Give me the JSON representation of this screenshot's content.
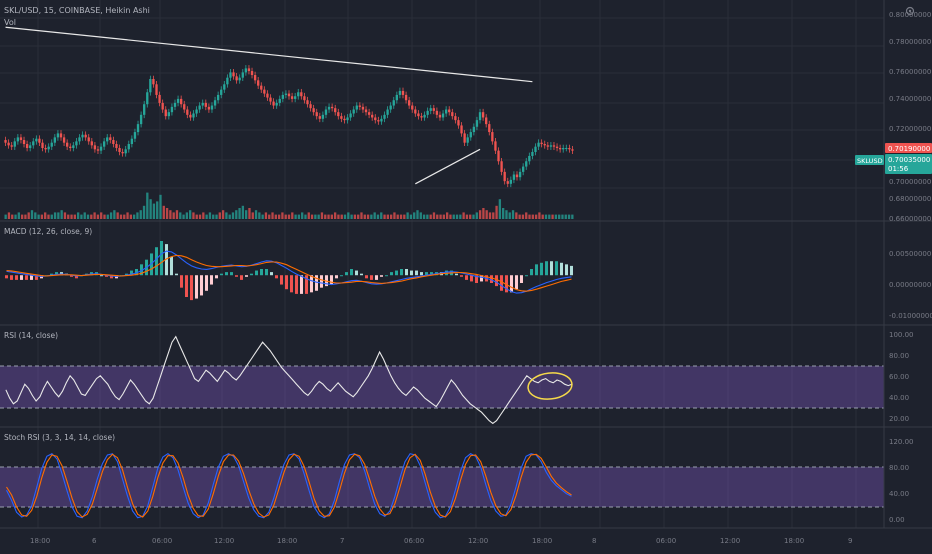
{
  "header": {
    "symbol_line": "SKL/USD, 15, COINBASE, Heikin Ashi",
    "vol_label": "Vol"
  },
  "price_axis": {
    "ticks": [
      "0.78000000",
      "0.76000000",
      "0.74000000",
      "0.72000000",
      "0.70000000",
      "0.68000000",
      "0.66000000"
    ],
    "top_tick": "0.80000000",
    "marker_red": "0.70190000",
    "marker_green_value": "0.70035000",
    "marker_green_time": "01:56",
    "symbol_tag": "SKLUSD"
  },
  "macd": {
    "label": "MACD (12, 26, close, 9)",
    "ticks": [
      "0.00500000",
      "0.00000000",
      "-0.01000000"
    ]
  },
  "rsi": {
    "label": "RSI (14, close)",
    "ticks": [
      "100.00",
      "80.00",
      "60.00",
      "40.00",
      "20.00"
    ]
  },
  "stoch": {
    "label": "Stoch RSI (3, 3, 14, 14, close)",
    "ticks": [
      "120.00",
      "80.00",
      "40.00",
      "0.00"
    ]
  },
  "time_axis": [
    "18:00",
    "6",
    "06:00",
    "12:00",
    "18:00",
    "7",
    "06:00",
    "12:00",
    "18:00",
    "8",
    "06:00",
    "12:00",
    "18:00",
    "9"
  ],
  "colors": {
    "up": "#26a69a",
    "down": "#ef5350",
    "background": "#1e222d",
    "macd_line": "#2962ff",
    "signal_line": "#ff6d00",
    "band": "#7e57c2",
    "annotation": "#f5d94a"
  },
  "chart_data": [
    {
      "type": "candlestick",
      "title": "SKL/USD, 15, COINBASE, Heikin Ashi",
      "ylim": [
        0.655,
        0.805
      ],
      "candles_close": [
        0.708,
        0.706,
        0.705,
        0.709,
        0.712,
        0.71,
        0.707,
        0.704,
        0.706,
        0.709,
        0.711,
        0.708,
        0.704,
        0.703,
        0.705,
        0.708,
        0.712,
        0.715,
        0.712,
        0.708,
        0.705,
        0.704,
        0.706,
        0.709,
        0.712,
        0.714,
        0.712,
        0.709,
        0.706,
        0.703,
        0.702,
        0.705,
        0.709,
        0.712,
        0.71,
        0.707,
        0.704,
        0.701,
        0.7,
        0.703,
        0.707,
        0.711,
        0.716,
        0.722,
        0.729,
        0.737,
        0.746,
        0.756,
        0.752,
        0.744,
        0.738,
        0.733,
        0.728,
        0.731,
        0.735,
        0.738,
        0.741,
        0.737,
        0.733,
        0.729,
        0.727,
        0.73,
        0.733,
        0.736,
        0.738,
        0.735,
        0.733,
        0.736,
        0.74,
        0.744,
        0.748,
        0.752,
        0.757,
        0.761,
        0.758,
        0.755,
        0.757,
        0.761,
        0.764,
        0.762,
        0.759,
        0.755,
        0.751,
        0.748,
        0.745,
        0.742,
        0.739,
        0.736,
        0.738,
        0.741,
        0.744,
        0.745,
        0.743,
        0.741,
        0.743,
        0.746,
        0.743,
        0.74,
        0.737,
        0.734,
        0.731,
        0.728,
        0.726,
        0.729,
        0.733,
        0.735,
        0.734,
        0.731,
        0.728,
        0.726,
        0.725,
        0.727,
        0.73,
        0.733,
        0.736,
        0.735,
        0.733,
        0.731,
        0.729,
        0.727,
        0.725,
        0.724,
        0.726,
        0.729,
        0.733,
        0.736,
        0.74,
        0.744,
        0.747,
        0.744,
        0.74,
        0.736,
        0.733,
        0.73,
        0.728,
        0.727,
        0.729,
        0.732,
        0.734,
        0.732,
        0.729,
        0.727,
        0.73,
        0.733,
        0.731,
        0.728,
        0.725,
        0.721,
        0.715,
        0.708,
        0.712,
        0.716,
        0.72,
        0.725,
        0.731,
        0.727,
        0.722,
        0.716,
        0.709,
        0.702,
        0.694,
        0.686,
        0.679,
        0.677,
        0.68,
        0.684,
        0.682,
        0.686,
        0.69,
        0.694,
        0.698,
        0.701,
        0.705,
        0.708,
        0.707,
        0.706,
        0.705,
        0.706,
        0.705,
        0.704,
        0.703,
        0.704,
        0.704,
        0.703,
        0.702
      ],
      "trendlines": [
        {
          "from": [
            0,
            0.795
          ],
          "to": [
            171,
            0.754
          ]
        },
        {
          "from": [
            133,
            0.677
          ],
          "to": [
            154,
            0.703
          ]
        }
      ]
    },
    {
      "type": "bar",
      "title": "Vol",
      "volume": [
        2,
        3,
        2,
        2,
        3,
        2,
        2,
        3,
        4,
        3,
        2,
        2,
        3,
        2,
        2,
        3,
        3,
        4,
        3,
        2,
        2,
        2,
        3,
        2,
        3,
        2,
        2,
        3,
        2,
        3,
        2,
        2,
        3,
        4,
        3,
        2,
        2,
        3,
        2,
        2,
        3,
        4,
        6,
        12,
        9,
        7,
        8,
        11,
        6,
        5,
        4,
        3,
        4,
        3,
        2,
        3,
        4,
        3,
        2,
        2,
        3,
        2,
        3,
        2,
        2,
        3,
        4,
        3,
        2,
        3,
        4,
        5,
        6,
        4,
        5,
        3,
        4,
        3,
        2,
        3,
        2,
        3,
        2,
        2,
        3,
        2,
        2,
        3,
        2,
        2,
        3,
        2,
        3,
        2,
        2,
        2,
        3,
        2,
        2,
        2,
        3,
        2,
        2,
        2,
        3,
        2,
        2,
        2,
        3,
        2,
        2,
        2,
        3,
        2,
        3,
        2,
        2,
        2,
        3,
        2,
        2,
        2,
        3,
        2,
        3,
        4,
        3,
        2,
        2,
        2,
        3,
        2,
        2,
        2,
        3,
        2,
        2,
        2,
        2,
        3,
        2,
        2,
        2,
        3,
        4,
        5,
        4,
        3,
        3,
        6,
        9,
        5,
        4,
        3,
        4,
        3,
        2,
        2,
        3,
        2,
        2,
        2,
        3,
        2,
        2,
        2,
        2,
        2,
        2,
        2,
        2,
        2,
        2
      ]
    },
    {
      "type": "line",
      "title": "MACD (12, 26, close, 9)",
      "ylim": [
        -0.011,
        0.007
      ],
      "series": [
        {
          "values": [
            0.001,
            0.0008,
            0.0006,
            0.0004,
            0.0002,
            0.0,
            -0.0002,
            -0.0003,
            -0.0002,
            0.0,
            0.0002,
            0.0003,
            0.0002,
            0.0,
            -0.0002,
            -0.0001,
            0.0001,
            0.0003,
            0.0004,
            0.0002,
            0.0,
            -0.0002,
            -0.0003,
            -0.0002,
            0.0,
            0.0003,
            0.0006,
            0.0012,
            0.002,
            0.003,
            0.0042,
            0.0055,
            0.0062,
            0.006,
            0.0052,
            0.0042,
            0.0032,
            0.0024,
            0.0019,
            0.0016,
            0.0015,
            0.0017,
            0.002,
            0.0023,
            0.0025,
            0.0026,
            0.0024,
            0.0022,
            0.0023,
            0.0026,
            0.003,
            0.0034,
            0.0037,
            0.0036,
            0.0032,
            0.0025,
            0.0018,
            0.001,
            0.0003,
            -0.0003,
            -0.0009,
            -0.0014,
            -0.0018,
            -0.002,
            -0.0022,
            -0.0024,
            -0.0022,
            -0.002,
            -0.0017,
            -0.0014,
            -0.0013,
            -0.0015,
            -0.0019,
            -0.0022,
            -0.0023,
            -0.0022,
            -0.002,
            -0.0017,
            -0.0014,
            -0.0011,
            -0.0008,
            -0.0006,
            -0.0004,
            -0.0002,
            0.0,
            0.0002,
            0.0004,
            0.0006,
            0.0008,
            0.0009,
            0.0008,
            0.0006,
            0.0003,
            0.0,
            -0.0003,
            -0.0005,
            -0.0008,
            -0.0012,
            -0.0018,
            -0.0027,
            -0.0035,
            -0.0042,
            -0.0046,
            -0.0045,
            -0.0041,
            -0.0035,
            -0.0029,
            -0.0024,
            -0.0019,
            -0.0015,
            -0.0011,
            -0.0008,
            -0.0006,
            -0.0004
          ]
        },
        {
          "values": [
            0.0012,
            0.0011,
            0.0009,
            0.0007,
            0.0005,
            0.0003,
            0.0001,
            -0.0001,
            -0.0002,
            -0.0001,
            0.0,
            0.0001,
            0.0001,
            0.0001,
            0.0,
            -0.0001,
            0.0,
            0.0001,
            0.0002,
            0.0002,
            0.0001,
            0.0,
            -0.0001,
            -0.0002,
            -0.0001,
            0.0,
            0.0002,
            0.0005,
            0.001,
            0.0016,
            0.0024,
            0.0033,
            0.0042,
            0.0048,
            0.0051,
            0.005,
            0.0046,
            0.004,
            0.0034,
            0.0029,
            0.0025,
            0.0023,
            0.0022,
            0.0022,
            0.0023,
            0.0024,
            0.0025,
            0.0025,
            0.0024,
            0.0025,
            0.0027,
            0.003,
            0.0033,
            0.0034,
            0.0034,
            0.0031,
            0.0027,
            0.0021,
            0.0015,
            0.0009,
            0.0003,
            -0.0003,
            -0.0008,
            -0.0012,
            -0.0015,
            -0.0018,
            -0.002,
            -0.002,
            -0.0019,
            -0.0018,
            -0.0016,
            -0.0016,
            -0.0017,
            -0.0019,
            -0.002,
            -0.0021,
            -0.002,
            -0.0019,
            -0.0017,
            -0.0015,
            -0.0012,
            -0.0009,
            -0.0007,
            -0.0004,
            -0.0002,
            0.0,
            0.0002,
            0.0004,
            0.0005,
            0.0006,
            0.0007,
            0.0007,
            0.0006,
            0.0004,
            0.0002,
            -0.0001,
            -0.0004,
            -0.0007,
            -0.0011,
            -0.0017,
            -0.0024,
            -0.0031,
            -0.0037,
            -0.004,
            -0.0041,
            -0.0039,
            -0.0036,
            -0.0032,
            -0.0028,
            -0.0024,
            -0.002,
            -0.0016,
            -0.0013,
            -0.001
          ]
        }
      ]
    },
    {
      "type": "line",
      "title": "RSI (14, close)",
      "ylim": [
        0,
        100
      ],
      "bands": [
        30,
        70
      ],
      "series": [
        {
          "values": [
            48,
            42,
            38,
            40,
            46,
            52,
            49,
            44,
            40,
            43,
            49,
            54,
            50,
            46,
            43,
            47,
            53,
            58,
            55,
            50,
            45,
            44,
            48,
            52,
            56,
            58,
            55,
            52,
            47,
            43,
            41,
            45,
            50,
            55,
            52,
            48,
            44,
            40,
            38,
            42,
            50,
            58,
            66,
            74,
            82,
            86,
            80,
            74,
            68,
            62,
            56,
            54,
            58,
            62,
            60,
            57,
            54,
            58,
            62,
            60,
            57,
            55,
            58,
            62,
            66,
            70,
            74,
            78,
            82,
            79,
            76,
            72,
            68,
            64,
            61,
            58,
            55,
            52,
            49,
            46,
            44,
            47,
            51,
            54,
            52,
            49,
            47,
            50,
            53,
            50,
            47,
            45,
            43,
            46,
            50,
            54,
            58,
            63,
            69,
            75,
            70,
            64,
            58,
            53,
            49,
            46,
            44,
            47,
            50,
            48,
            45,
            42,
            40,
            38,
            36,
            40,
            45,
            50,
            55,
            52,
            48,
            44,
            41,
            38,
            36,
            34,
            32,
            29,
            26,
            24,
            26,
            30,
            34,
            38,
            42,
            46,
            50,
            54,
            58,
            56,
            54,
            53,
            55,
            56,
            54,
            53,
            55,
            54,
            52,
            51,
            52
          ]
        }
      ]
    },
    {
      "type": "line",
      "title": "Stoch RSI (3, 3, 14, 14, close)",
      "ylim": [
        -10,
        120
      ],
      "bands": [
        20,
        80
      ],
      "series": [
        {
          "values": [
            45,
            30,
            12,
            5,
            8,
            22,
            50,
            78,
            96,
            100,
            92,
            70,
            44,
            20,
            6,
            4,
            14,
            35,
            62,
            85,
            98,
            100,
            88,
            62,
            36,
            14,
            4,
            6,
            22,
            50,
            78,
            95,
            100,
            94,
            76,
            50,
            26,
            10,
            4,
            8,
            26,
            54,
            80,
            96,
            100,
            96,
            82,
            58,
            34,
            16,
            6,
            4,
            12,
            34,
            60,
            84,
            98,
            100,
            92,
            70,
            44,
            20,
            8,
            4,
            10,
            30,
            58,
            84,
            98,
            100,
            94,
            74,
            48,
            24,
            10,
            6,
            14,
            36,
            64,
            88,
            100,
            98,
            82,
            56,
            30,
            12,
            4,
            6,
            20,
            46,
            74,
            94,
            100,
            96,
            80,
            54,
            30,
            14,
            6,
            8,
            24,
            50,
            78,
            96,
            100,
            98,
            88,
            72,
            60,
            52,
            46,
            40,
            36
          ]
        },
        {
          "values": [
            50,
            38,
            20,
            8,
            6,
            15,
            36,
            64,
            87,
            98,
            96,
            82,
            58,
            33,
            13,
            5,
            9,
            24,
            48,
            73,
            91,
            99,
            94,
            76,
            49,
            25,
            9,
            5,
            14,
            36,
            64,
            86,
            97,
            97,
            86,
            64,
            38,
            18,
            7,
            6,
            17,
            40,
            67,
            88,
            98,
            98,
            89,
            70,
            46,
            25,
            11,
            5,
            8,
            23,
            47,
            72,
            91,
            99,
            96,
            81,
            57,
            32,
            14,
            6,
            7,
            20,
            44,
            71,
            91,
            99,
            97,
            84,
            61,
            36,
            17,
            8,
            10,
            25,
            50,
            76,
            94,
            99,
            90,
            69,
            43,
            21,
            8,
            5,
            13,
            33,
            60,
            84,
            97,
            98,
            88,
            67,
            42,
            22,
            10,
            7,
            16,
            37,
            64,
            87,
            98,
            99,
            93,
            80,
            66,
            56,
            49,
            43,
            38
          ]
        }
      ]
    }
  ]
}
